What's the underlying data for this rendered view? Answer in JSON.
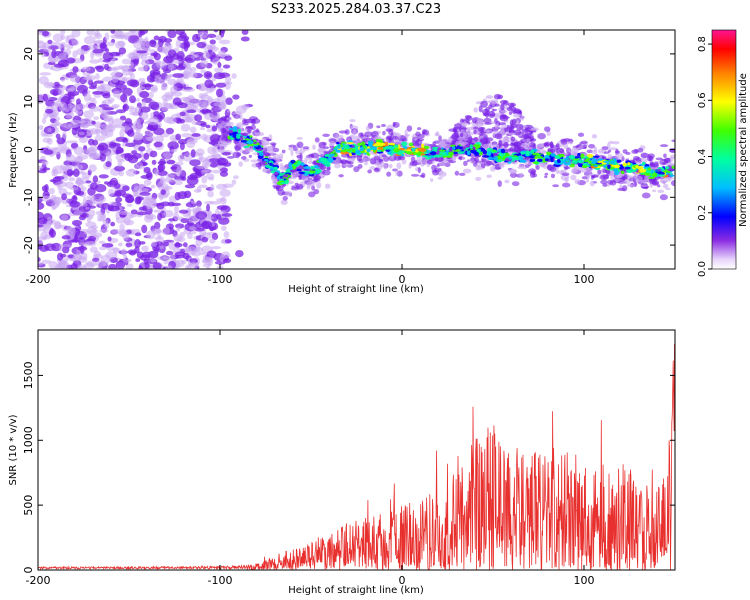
{
  "page": {
    "title": "S233.2025.284.03.37.C23"
  },
  "colors": {
    "snr_line": "#e8312f",
    "spec_scatter": "#7a22e6",
    "spec_faint": "#c9a6f2"
  },
  "chart_data": [
    {
      "type": "heatmap",
      "xlabel": "Height of straight line (km)",
      "ylabel": "Frequency (Hz)",
      "xlim": [
        -200,
        150
      ],
      "ylim": [
        -25,
        25
      ],
      "x_ticks": [
        -200,
        -100,
        0,
        100
      ],
      "x_tick_labels": [
        "-200",
        "-100",
        "0",
        "100"
      ],
      "y_ticks": [
        20,
        10,
        0,
        -10,
        -20
      ],
      "y_tick_labels": [
        "20",
        "10",
        "0",
        "-10",
        "-20"
      ],
      "colorbar": {
        "label": "Normalized spectral amplitude",
        "range": [
          0,
          0.85
        ],
        "ticks": [
          0,
          0.2,
          0.4,
          0.6,
          0.8
        ],
        "tick_labels": [
          "0.0",
          "0.2",
          "0.4",
          "0.6",
          "0.8"
        ]
      },
      "ridge": {
        "x": [
          -100,
          -90,
          -80,
          -75,
          -70,
          -65,
          -60,
          -55,
          -50,
          -45,
          -40,
          -35,
          -30,
          -20,
          -10,
          0,
          10,
          20,
          30,
          40,
          50,
          60,
          70,
          80,
          90,
          100,
          110,
          120,
          130,
          140,
          150
        ],
        "y": [
          4,
          3,
          1,
          -2,
          -4,
          -7,
          -3,
          -4,
          -5,
          -3,
          -2,
          0.5,
          0,
          0,
          0.5,
          0,
          -0.5,
          -1,
          0,
          0,
          -1,
          -2,
          -1,
          -2,
          -2,
          -2.5,
          -3,
          -3.5,
          -4,
          -5,
          -4
        ]
      },
      "hump": {
        "x": [
          30,
          40,
          50,
          60,
          70
        ],
        "y": [
          3,
          7,
          10,
          8,
          3
        ]
      }
    },
    {
      "type": "line",
      "xlabel": "Height of straight line (km)",
      "ylabel": "SNR (10 * v/v)",
      "xlim": [
        -200,
        150
      ],
      "ylim": [
        0,
        1850
      ],
      "x_ticks": [
        -200,
        -100,
        0,
        100
      ],
      "x_tick_labels": [
        "-200",
        "-100",
        "0",
        "100"
      ],
      "y_ticks": [
        0,
        500,
        1000,
        1500
      ],
      "y_tick_labels": [
        "0",
        "500",
        "1000",
        "1500"
      ],
      "envelope": {
        "x": [
          -200,
          -150,
          -100,
          -85,
          -75,
          -65,
          -55,
          -45,
          -35,
          -25,
          -15,
          -5,
          5,
          15,
          25,
          35,
          45,
          55,
          65,
          75,
          85,
          95,
          105,
          115,
          125,
          135,
          145,
          150
        ],
        "y": [
          25,
          25,
          30,
          40,
          80,
          150,
          180,
          260,
          330,
          400,
          420,
          480,
          520,
          600,
          750,
          900,
          1200,
          1100,
          1000,
          900,
          950,
          900,
          850,
          900,
          800,
          700,
          750,
          1850
        ]
      }
    }
  ]
}
